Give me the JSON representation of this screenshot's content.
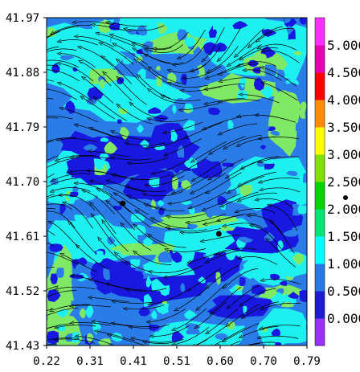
{
  "chart_data": {
    "type": "heatmap",
    "title": "",
    "xlabel": "",
    "ylabel": "",
    "x_ticks": [
      "0.22",
      "0.31",
      "0.41",
      "0.51",
      "0.60",
      "0.70",
      "0.79"
    ],
    "y_ticks": [
      "41.97",
      "41.88",
      "41.79",
      "41.70",
      "41.61",
      "41.52",
      "41.43"
    ],
    "xlim": [
      0.22,
      0.79
    ],
    "ylim": [
      41.43,
      41.97
    ],
    "colorbar": {
      "labels": [
        "0.000",
        "0.500",
        "1.000",
        "1.500",
        "2.000",
        "2.500",
        "3.000",
        "3.500",
        "4.000",
        "4.500",
        "5.000"
      ],
      "colors": [
        "#9a30ff",
        "#1c1cd6",
        "#2878e8",
        "#00ffff",
        "#00e676",
        "#00d400",
        "#80e000",
        "#ffff00",
        "#ff8c00",
        "#ff0000",
        "#e800b0",
        "#ff30ff"
      ]
    },
    "field_colors": {
      "deep_blue": "#1818e0",
      "mid_blue": "#2a7de8",
      "cyan": "#1ef0f0",
      "green_light": "#7fe864",
      "green": "#40e040"
    },
    "markers": [
      {
        "x": 0.387,
        "y": 41.664
      },
      {
        "x": 0.597,
        "y": 41.614
      }
    ],
    "streamlines": "black"
  }
}
